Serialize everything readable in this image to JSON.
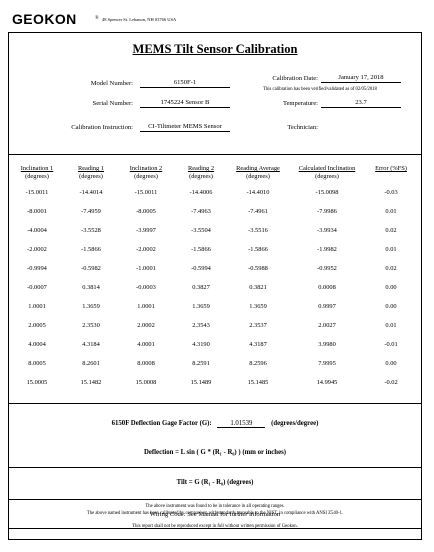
{
  "brand": {
    "logo": "GEOKON",
    "registered": "®",
    "address": "48 Spencer St. Lebanon, NH 03766 USA"
  },
  "title": "MEMS Tilt Sensor Calibration",
  "header": {
    "model_label": "Model Number:",
    "model_value": "6150F-1",
    "serial_label": "Serial Number:",
    "serial_value": "1745224 Sensor B",
    "instruction_label": "Calibration Instruction:",
    "instruction_value": "CI-Tiltmeter MEMS Sensor",
    "date_label": "Calibration Date:",
    "date_value": "January 17, 2018",
    "verified_note": "This calibration has been verified/validated as of 02/05/2018",
    "temperature_label": "Temperature:",
    "temperature_value": "23.7",
    "technician_label": "Technician:"
  },
  "table": {
    "headers": [
      {
        "line1": "Inclination 1",
        "line2": "(degrees)"
      },
      {
        "line1": "Reading 1",
        "line2": "(degrees)"
      },
      {
        "line1": "Inclination 2",
        "line2": "(degrees)"
      },
      {
        "line1": "Reading 2",
        "line2": "(degrees)"
      },
      {
        "line1": "Reading Average",
        "line2": "(degrees)"
      },
      {
        "line1": "Calculated Inclination",
        "line2": "(degrees)"
      },
      {
        "line1": "Error  (%FS)",
        "line2": ""
      }
    ],
    "rows": [
      [
        "-15.0011",
        "-14.4014",
        "-15.0011",
        "-14.4006",
        "-14.4010",
        "-15.0098",
        "-0.03"
      ],
      [
        "-8.0001",
        "-7.4959",
        "-8.0005",
        "-7.4963",
        "-7.4961",
        "-7.9986",
        "0.01"
      ],
      [
        "-4.0004",
        "-3.5528",
        "-3.9997",
        "-3.5504",
        "-3.5516",
        "-3.9934",
        "0.02"
      ],
      [
        "-2.0002",
        "-1.5866",
        "-2.0002",
        "-1.5866",
        "-1.5866",
        "-1.9982",
        "0.01"
      ],
      [
        "-0.9994",
        "-0.5982",
        "-1.0001",
        "-0.5994",
        "-0.5988",
        "-0.9952",
        "0.02"
      ],
      [
        "-0.0007",
        "0.3814",
        "-0.0003",
        "0.3827",
        "0.3821",
        "0.0008",
        "0.00"
      ],
      [
        "1.0001",
        "1.3659",
        "1.0001",
        "1.3659",
        "1.3659",
        "0.9997",
        "0.00"
      ],
      [
        "2.0005",
        "2.3530",
        "2.0002",
        "2.3543",
        "2.3537",
        "2.0027",
        "0.01"
      ],
      [
        "4.0004",
        "4.3184",
        "4.0001",
        "4.3190",
        "4.3187",
        "3.9980",
        "-0.01"
      ],
      [
        "8.0005",
        "8.2601",
        "8.0008",
        "8.2591",
        "8.2596",
        "7.9995",
        "0.00"
      ],
      [
        "15.0005",
        "15.1482",
        "15.0008",
        "15.1489",
        "15.1485",
        "14.9945",
        "-0.02"
      ]
    ]
  },
  "gage": {
    "label": "6150F  Deflection Gage Factor (G):",
    "value": "1.01539",
    "unit": "(degrees/degree)"
  },
  "formulas": {
    "deflection": "Deflection = L sin ( G * (R₁ - R₀) )  (mm or inches)",
    "tilt": "Tilt = G (R₁ - R₀) (degrees)"
  },
  "wiring": "Wiring Code: See Manual for further information",
  "footer": {
    "line1": "The above instrument was found to be in tolerance in all operating ranges.",
    "line2": "The above named instrument has been calibrated by comparison with standards traceable to the NIST, in compliance with ANSI Z540-1.",
    "line3": "This report shall not be reproduced except in full without written permission of Geokon."
  }
}
